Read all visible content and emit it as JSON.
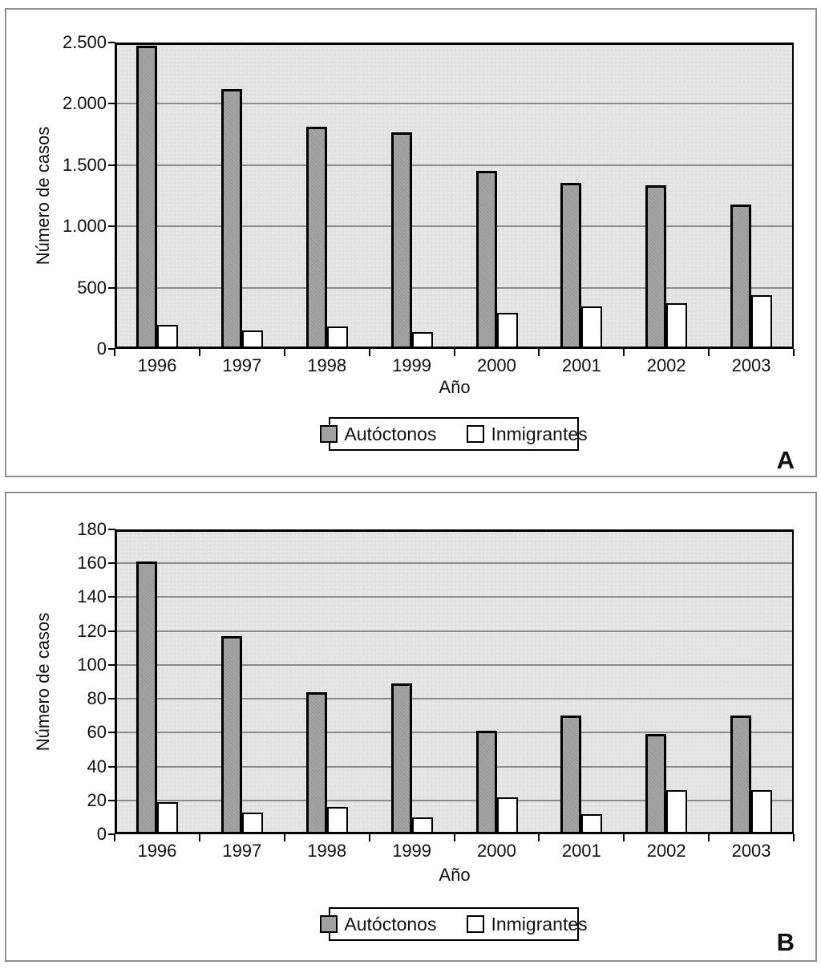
{
  "figure_title": "",
  "colors": {
    "bar_gray": "#a0a0a0",
    "bar_white": "#ffffff",
    "plot_bg": "#e2e2e2",
    "gridline": "#8c8c8c",
    "axis": "#000000",
    "panel_border": "#8f8f8f"
  },
  "chart_data": [
    {
      "type": "bar",
      "panel_label": "A",
      "ylabel": "Número de casos",
      "xlabel": "Año",
      "categories": [
        "1996",
        "1997",
        "1998",
        "1999",
        "2000",
        "2001",
        "2002",
        "2003"
      ],
      "series": [
        {
          "name": "Autóctonos",
          "slug": "autoctonos",
          "color": "#a0a0a0",
          "values": [
            2475,
            2120,
            1815,
            1765,
            1450,
            1355,
            1335,
            1180
          ]
        },
        {
          "name": "Inmigrantes",
          "slug": "inmigrantes",
          "color": "#ffffff",
          "values": [
            195,
            150,
            180,
            140,
            295,
            350,
            370,
            440
          ]
        }
      ],
      "ylim": [
        0,
        2500
      ],
      "ytick_values": [
        0,
        500,
        1000,
        1500,
        2000,
        2500
      ],
      "ytick_labels": [
        "0",
        "500",
        "1.000",
        "1.500",
        "2.000",
        "2.500"
      ],
      "grid": true,
      "legend_position": "bottom",
      "legend": [
        "Autóctonos",
        "Inmigrantes"
      ]
    },
    {
      "type": "bar",
      "panel_label": "B",
      "ylabel": "Número de casos",
      "xlabel": "Año",
      "categories": [
        "1996",
        "1997",
        "1998",
        "1999",
        "2000",
        "2001",
        "2002",
        "2003"
      ],
      "series": [
        {
          "name": "Autóctonos",
          "slug": "autoctonos",
          "color": "#a0a0a0",
          "values": [
            161,
            117,
            84,
            89,
            61,
            70,
            59,
            70
          ]
        },
        {
          "name": "Inmigrantes",
          "slug": "inmigrantes",
          "color": "#ffffff",
          "values": [
            19,
            13,
            16,
            10,
            22,
            12,
            26,
            26
          ]
        }
      ],
      "ylim": [
        0,
        180
      ],
      "ytick_values": [
        0,
        20,
        40,
        60,
        80,
        100,
        120,
        140,
        160,
        180
      ],
      "ytick_labels": [
        "0",
        "20",
        "40",
        "60",
        "80",
        "100",
        "120",
        "140",
        "160",
        "180"
      ],
      "grid": true,
      "legend_position": "bottom",
      "legend": [
        "Autóctonos",
        "Inmigrantes"
      ]
    }
  ]
}
